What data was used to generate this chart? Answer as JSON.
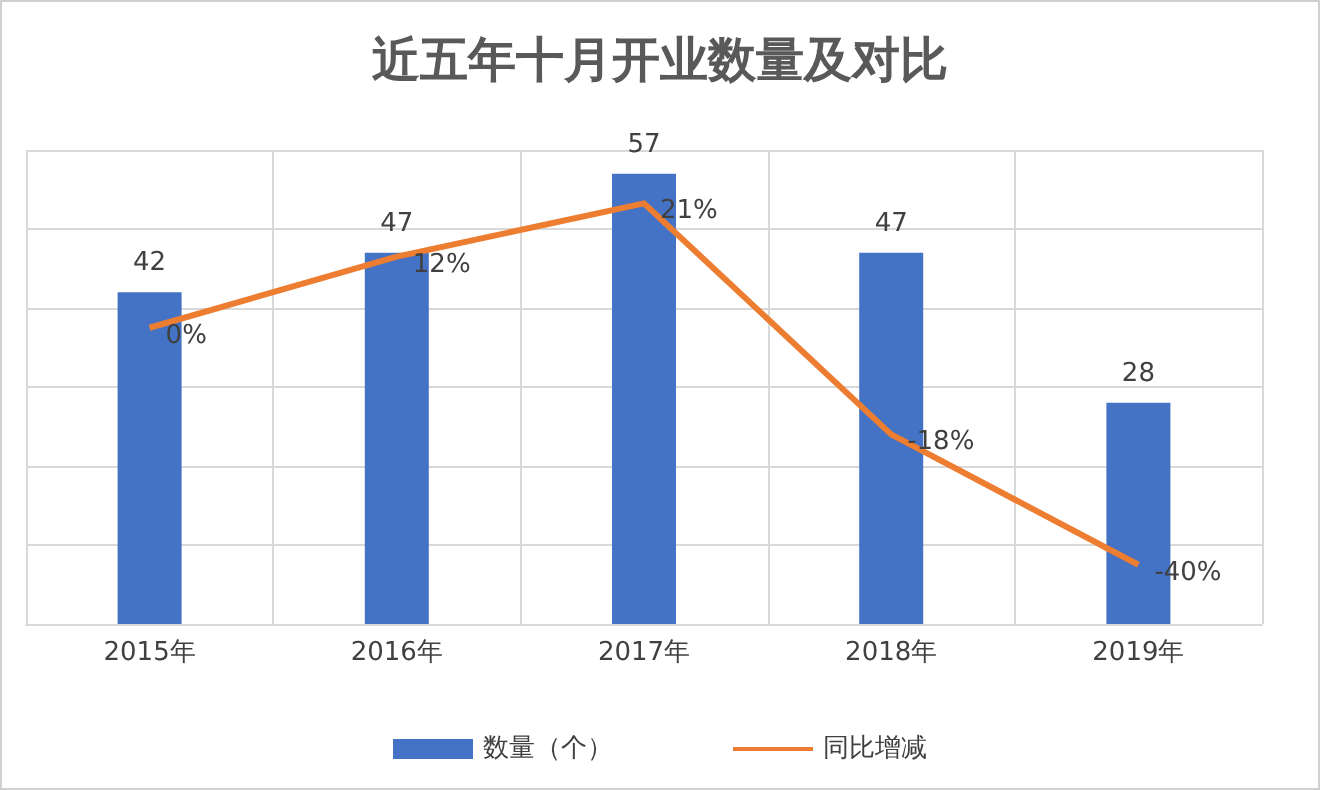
{
  "chart_data": {
    "type": "bar",
    "title": "近五年十月开业数量及对比",
    "categories": [
      "2015年",
      "2016年",
      "2017年",
      "2018年",
      "2019年"
    ],
    "series": [
      {
        "name": "数量（个）",
        "color": "#4472c4",
        "values": [
          42,
          47,
          57,
          47,
          28
        ],
        "value_labels": [
          "42",
          "47",
          "57",
          "47",
          "28"
        ]
      },
      {
        "name": "同比增减",
        "type": "line",
        "axis": "y2",
        "color": "#ed7d31",
        "values": [
          0,
          12,
          21,
          -18,
          -40
        ],
        "value_labels": [
          "0%",
          "12%",
          "21%",
          "-18%",
          "-40%"
        ]
      }
    ],
    "ylim": [
      0,
      60
    ],
    "yticks": [
      {
        "value": 0,
        "label": null
      },
      {
        "value": 10,
        "label": null
      },
      {
        "value": 20,
        "label": null
      },
      {
        "value": 30,
        "label": null
      },
      {
        "value": 40,
        "label": null
      },
      {
        "value": 50,
        "label": null
      },
      {
        "value": 60,
        "label": null
      }
    ],
    "y2lim": [
      -50,
      30
    ],
    "tick_labels": "x",
    "grid": true,
    "legend": "bottom",
    "marker": "none"
  }
}
